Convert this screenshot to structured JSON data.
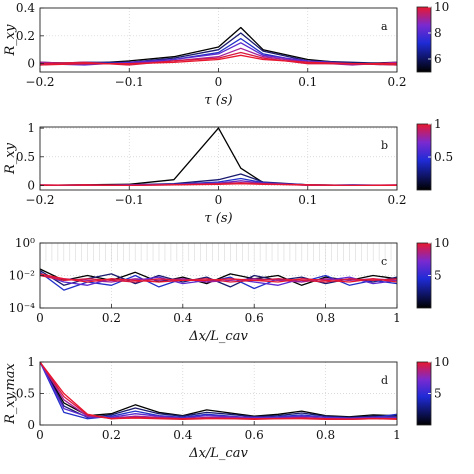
{
  "panels": [
    {
      "panel_label": "a",
      "xlabel": "τ (s)",
      "ylabel": "R_xy",
      "colorbar": {
        "ticks": [
          "10",
          "8",
          "6"
        ],
        "values": [
          10,
          8,
          6
        ],
        "range": [
          5,
          10
        ]
      },
      "yscale": "linear"
    },
    {
      "panel_label": "b",
      "xlabel": "τ (s)",
      "ylabel": "R_xy",
      "colorbar": {
        "ticks": [
          "1",
          "0.5"
        ],
        "values": [
          1,
          0.5
        ],
        "range": [
          0,
          1
        ]
      },
      "yscale": "linear"
    },
    {
      "panel_label": "c",
      "xlabel": "Δx/L_cav",
      "ylabel": "",
      "colorbar": {
        "ticks": [
          "10",
          "5"
        ],
        "values": [
          10,
          5
        ],
        "range": [
          0,
          10
        ]
      },
      "yscale": "log"
    },
    {
      "panel_label": "d",
      "xlabel": "Δx/L_cav",
      "ylabel": "R_xy,max",
      "colorbar": {
        "ticks": [
          "10",
          "5"
        ],
        "values": [
          10,
          5
        ],
        "range": [
          0,
          10
        ]
      },
      "yscale": "linear"
    }
  ],
  "colors": {
    "low": "#000000",
    "mid": "#1f2bd6",
    "high": "#e8172f"
  },
  "chart_data": [
    {
      "type": "line",
      "x": [
        -0.2,
        -0.15,
        -0.1,
        -0.05,
        0,
        0.025,
        0.05,
        0.1,
        0.15,
        0.2
      ],
      "xticks": [
        "−0.2",
        "−0.1",
        "0",
        "0.1",
        "0.2"
      ],
      "xtick_values": [
        -0.2,
        -0.1,
        0,
        0.1,
        0.2
      ],
      "yticks": [
        "0.4",
        "0.2",
        "0"
      ],
      "ytick_values": [
        0.4,
        0.2,
        0
      ],
      "xlim": [
        -0.2,
        0.2
      ],
      "ylim": [
        -0.06,
        0.4
      ],
      "series": [
        {
          "color": "#000000",
          "values": [
            0.01,
            0.0,
            0.02,
            0.05,
            0.12,
            0.26,
            0.1,
            0.03,
            0.0,
            0.01
          ]
        },
        {
          "color": "#1a1a6e",
          "values": [
            0.0,
            0.01,
            0.01,
            0.04,
            0.1,
            0.22,
            0.09,
            0.02,
            0.01,
            0.0
          ]
        },
        {
          "color": "#2230c8",
          "values": [
            -0.01,
            0.01,
            0.0,
            0.03,
            0.08,
            0.18,
            0.07,
            0.01,
            0.0,
            -0.01
          ]
        },
        {
          "color": "#5a2bd0",
          "values": [
            0.0,
            -0.01,
            0.01,
            0.03,
            0.07,
            0.15,
            0.06,
            0.02,
            0.0,
            0.0
          ]
        },
        {
          "color": "#a0209a",
          "values": [
            0.01,
            0.0,
            0.0,
            0.02,
            0.05,
            0.11,
            0.05,
            0.01,
            -0.01,
            0.01
          ]
        },
        {
          "color": "#d8183e",
          "values": [
            0.0,
            0.01,
            -0.01,
            0.02,
            0.04,
            0.08,
            0.04,
            0.0,
            0.0,
            -0.01
          ]
        },
        {
          "color": "#e8172f",
          "values": [
            -0.01,
            0.0,
            0.0,
            0.01,
            0.03,
            0.06,
            0.03,
            0.01,
            0.0,
            0.0
          ]
        }
      ]
    },
    {
      "type": "line",
      "x": [
        -0.2,
        -0.15,
        -0.1,
        -0.05,
        0,
        0.025,
        0.05,
        0.1,
        0.15,
        0.2
      ],
      "xticks": [
        "−0.2",
        "−0.1",
        "0",
        "0.1",
        "0.2"
      ],
      "xtick_values": [
        -0.2,
        -0.1,
        0,
        0.1,
        0.2
      ],
      "yticks": [
        "1",
        "0.5",
        "0"
      ],
      "ytick_values": [
        1,
        0.5,
        0
      ],
      "xlim": [
        -0.2,
        0.2
      ],
      "ylim": [
        -0.08,
        1.02
      ],
      "series": [
        {
          "color": "#000000",
          "values": [
            0.0,
            0.01,
            0.02,
            0.1,
            1.0,
            0.3,
            0.05,
            0.01,
            0.0,
            0.0
          ]
        },
        {
          "color": "#1a1a6e",
          "values": [
            0.0,
            0.0,
            0.01,
            0.03,
            0.1,
            0.2,
            0.06,
            0.01,
            0.0,
            0.0
          ]
        },
        {
          "color": "#2230c8",
          "values": [
            0.0,
            0.01,
            0.0,
            0.02,
            0.06,
            0.12,
            0.05,
            0.0,
            0.01,
            0.0
          ]
        },
        {
          "color": "#6a2ac0",
          "values": [
            0.0,
            0.0,
            0.01,
            0.02,
            0.04,
            0.08,
            0.04,
            0.01,
            0.0,
            0.0
          ]
        },
        {
          "color": "#c01a60",
          "values": [
            0.01,
            0.0,
            0.0,
            0.01,
            0.03,
            0.05,
            0.03,
            0.0,
            0.0,
            0.01
          ]
        },
        {
          "color": "#e8172f",
          "values": [
            0.0,
            0.01,
            0.0,
            0.01,
            0.02,
            0.03,
            0.02,
            0.01,
            0.0,
            0.0
          ]
        }
      ]
    },
    {
      "type": "line",
      "x": [
        0,
        0.067,
        0.133,
        0.2,
        0.267,
        0.333,
        0.4,
        0.467,
        0.533,
        0.6,
        0.667,
        0.733,
        0.8,
        0.867,
        0.933,
        1.0
      ],
      "xticks": [
        "0",
        "0.2",
        "0.4",
        "0.6",
        "0.8",
        "1"
      ],
      "xtick_values": [
        0,
        0.2,
        0.4,
        0.6,
        0.8,
        1
      ],
      "yticks": [
        "10⁰",
        "10⁻²",
        "10⁻⁴"
      ],
      "ytick_values": [
        0,
        -2,
        -4
      ],
      "xlim": [
        0,
        1
      ],
      "ylim": [
        -4,
        0
      ],
      "log10_values": true,
      "series": [
        {
          "color": "#000000",
          "values": [
            -1.6,
            -2.3,
            -2.0,
            -2.3,
            -1.8,
            -2.4,
            -2.1,
            -2.5,
            -1.9,
            -2.2,
            -2.0,
            -2.6,
            -2.1,
            -2.3,
            -2.0,
            -2.2
          ]
        },
        {
          "color": "#1a1a6e",
          "values": [
            -1.7,
            -2.6,
            -2.2,
            -1.9,
            -2.5,
            -2.0,
            -2.4,
            -2.1,
            -2.7,
            -2.0,
            -2.3,
            -2.1,
            -2.5,
            -2.2,
            -2.4,
            -2.1
          ]
        },
        {
          "color": "#2230c8",
          "values": [
            -1.8,
            -2.9,
            -2.4,
            -2.6,
            -2.0,
            -2.7,
            -2.2,
            -2.4,
            -2.1,
            -2.8,
            -2.2,
            -2.4,
            -2.0,
            -2.6,
            -2.3,
            -2.5
          ]
        },
        {
          "color": "#5a2bd0",
          "values": [
            -1.9,
            -2.4,
            -2.6,
            -2.2,
            -2.3,
            -2.1,
            -2.5,
            -2.3,
            -2.2,
            -2.4,
            -2.6,
            -2.2,
            -2.3,
            -2.1,
            -2.5,
            -2.3
          ]
        },
        {
          "color": "#a0209a",
          "values": [
            -2.0,
            -2.2,
            -2.3,
            -2.4,
            -2.2,
            -2.3,
            -2.2,
            -2.4,
            -2.3,
            -2.2,
            -2.3,
            -2.4,
            -2.2,
            -2.3,
            -2.2,
            -2.3
          ]
        },
        {
          "color": "#d8183e",
          "values": [
            -2.0,
            -2.3,
            -2.2,
            -2.3,
            -2.4,
            -2.2,
            -2.3,
            -2.2,
            -2.4,
            -2.3,
            -2.2,
            -2.3,
            -2.4,
            -2.2,
            -2.3,
            -2.2
          ]
        },
        {
          "color": "#e8172f",
          "values": [
            -1.9,
            -2.2,
            -2.4,
            -2.2,
            -2.3,
            -2.4,
            -2.3,
            -2.3,
            -2.2,
            -2.3,
            -2.4,
            -2.2,
            -2.3,
            -2.4,
            -2.2,
            -2.4
          ]
        }
      ]
    },
    {
      "type": "line",
      "x": [
        0,
        0.067,
        0.133,
        0.2,
        0.267,
        0.333,
        0.4,
        0.467,
        0.533,
        0.6,
        0.667,
        0.733,
        0.8,
        0.867,
        0.933,
        1.0
      ],
      "xticks": [
        "0",
        "0.2",
        "0.4",
        "0.6",
        "0.8",
        "1"
      ],
      "xtick_values": [
        0,
        0.2,
        0.4,
        0.6,
        0.8,
        1
      ],
      "yticks": [
        "1",
        "0.5",
        "0"
      ],
      "ytick_values": [
        1,
        0.5,
        0
      ],
      "xlim": [
        0,
        1
      ],
      "ylim": [
        0,
        1
      ],
      "series": [
        {
          "color": "#000000",
          "values": [
            1.0,
            0.35,
            0.15,
            0.18,
            0.32,
            0.2,
            0.15,
            0.24,
            0.19,
            0.14,
            0.17,
            0.22,
            0.15,
            0.13,
            0.16,
            0.15
          ]
        },
        {
          "color": "#1a1a6e",
          "values": [
            1.0,
            0.3,
            0.12,
            0.16,
            0.27,
            0.18,
            0.14,
            0.2,
            0.17,
            0.13,
            0.15,
            0.19,
            0.14,
            0.12,
            0.14,
            0.14
          ]
        },
        {
          "color": "#2230c8",
          "values": [
            1.0,
            0.2,
            0.1,
            0.14,
            0.22,
            0.15,
            0.12,
            0.17,
            0.14,
            0.11,
            0.13,
            0.16,
            0.12,
            0.11,
            0.12,
            0.17
          ]
        },
        {
          "color": "#5a2bd0",
          "values": [
            1.0,
            0.26,
            0.13,
            0.12,
            0.18,
            0.14,
            0.11,
            0.15,
            0.13,
            0.12,
            0.12,
            0.14,
            0.12,
            0.11,
            0.12,
            0.12
          ]
        },
        {
          "color": "#a0209a",
          "values": [
            1.0,
            0.4,
            0.14,
            0.11,
            0.14,
            0.12,
            0.1,
            0.12,
            0.12,
            0.1,
            0.11,
            0.12,
            0.1,
            0.1,
            0.11,
            0.1
          ]
        },
        {
          "color": "#d8183e",
          "values": [
            1.0,
            0.45,
            0.16,
            0.1,
            0.12,
            0.11,
            0.1,
            0.11,
            0.1,
            0.1,
            0.1,
            0.11,
            0.1,
            0.09,
            0.1,
            0.1
          ]
        },
        {
          "color": "#e8172f",
          "values": [
            1.0,
            0.5,
            0.17,
            0.1,
            0.11,
            0.1,
            0.09,
            0.1,
            0.1,
            0.09,
            0.1,
            0.1,
            0.09,
            0.09,
            0.1,
            0.09
          ]
        }
      ]
    }
  ]
}
